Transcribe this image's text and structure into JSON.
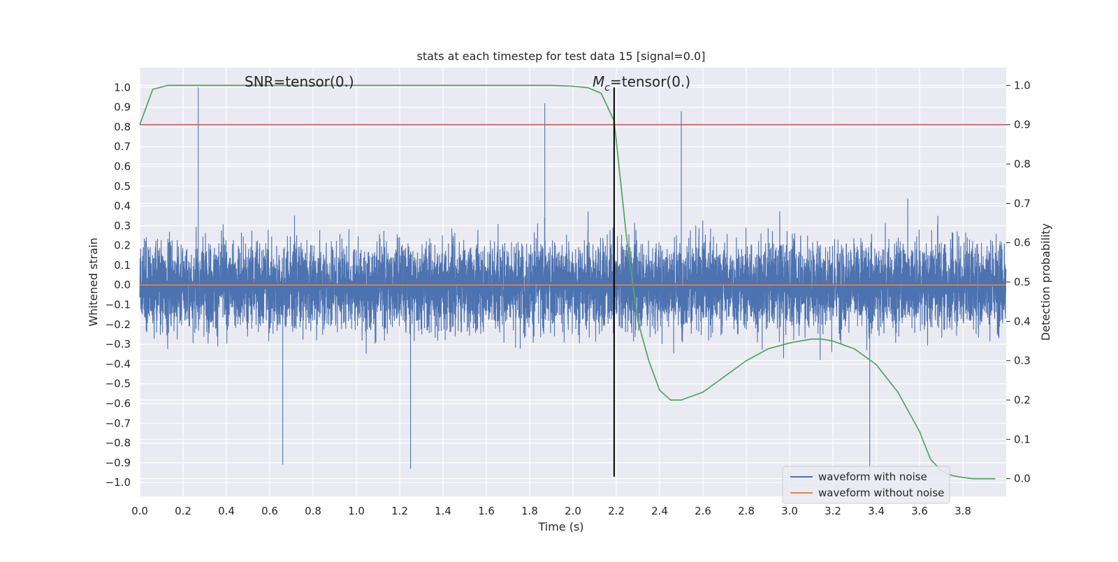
{
  "chart_data": {
    "type": "line",
    "title": "stats at each timestep for test data 15 [signal=0.0]",
    "xlabel": "Time (s)",
    "ylabel": "Whitened strain",
    "y2label": "Detection probability",
    "xlim": [
      0.0,
      4.0
    ],
    "ylim": [
      -1.07,
      1.1
    ],
    "y2lim": [
      -0.045,
      1.045
    ],
    "grid": true,
    "legend_position": "lower-right",
    "xticks": [
      "0.0",
      "0.2",
      "0.4",
      "0.6",
      "0.8",
      "1.0",
      "1.2",
      "1.4",
      "1.6",
      "1.8",
      "2.0",
      "2.2",
      "2.4",
      "2.6",
      "2.8",
      "3.0",
      "3.2",
      "3.4",
      "3.6",
      "3.8"
    ],
    "yticks": [
      "1.0",
      "0.9",
      "0.8",
      "0.7",
      "0.6",
      "0.5",
      "0.4",
      "0.3",
      "0.2",
      "0.1",
      "0.0",
      "−0.1",
      "−0.2",
      "−0.3",
      "−0.4",
      "−0.5",
      "−0.6",
      "−0.7",
      "−0.8",
      "−0.9",
      "−1.0"
    ],
    "y2ticks": [
      "1.0",
      "0.9",
      "0.8",
      "0.7",
      "0.6",
      "0.5",
      "0.4",
      "0.3",
      "0.2",
      "0.1",
      "0.0"
    ],
    "annotations": {
      "snr_text": "SNR=tensor(0.)",
      "mc_symbol": "M",
      "mc_subscript": "c",
      "mc_text": "=tensor(0.)"
    },
    "series": [
      {
        "name": "waveform with noise",
        "axis": "left",
        "color": "#4c72b0",
        "kind": "noise",
        "sample_rate": 2048,
        "amplitude_envelope": 0.55,
        "notable_peaks": [
          [
            0.27,
            1.0
          ],
          [
            1.87,
            0.92
          ],
          [
            2.5,
            0.88
          ],
          [
            3.37,
            -0.97
          ],
          [
            1.25,
            -0.93
          ],
          [
            0.66,
            -0.91
          ]
        ]
      },
      {
        "name": "waveform without noise",
        "axis": "left",
        "color": "#dd8452",
        "x": [
          0.0,
          4.0
        ],
        "y": [
          0.0,
          0.0
        ]
      },
      {
        "axis": "right",
        "color": "#55a868",
        "x": [
          0.0,
          0.06,
          0.13,
          0.2,
          0.5,
          1.0,
          1.5,
          1.9,
          2.0,
          2.07,
          2.13,
          2.19,
          2.25,
          2.3,
          2.35,
          2.4,
          2.45,
          2.5,
          2.6,
          2.7,
          2.8,
          2.9,
          3.0,
          3.1,
          3.15,
          3.2,
          3.3,
          3.4,
          3.5,
          3.6,
          3.65,
          3.7,
          3.75,
          3.8,
          3.85,
          3.9,
          3.95
        ],
        "y": [
          0.9,
          0.99,
          1.0,
          1.0,
          1.0,
          1.0,
          1.0,
          1.0,
          0.998,
          0.994,
          0.98,
          0.91,
          0.6,
          0.4,
          0.3,
          0.225,
          0.2,
          0.2,
          0.22,
          0.26,
          0.3,
          0.33,
          0.345,
          0.355,
          0.355,
          0.35,
          0.33,
          0.29,
          0.22,
          0.12,
          0.05,
          0.02,
          0.008,
          0.003,
          0.0,
          0.0,
          0.0
        ]
      },
      {
        "axis": "right",
        "color": "#c44e52",
        "kind": "threshold",
        "x": [
          0.0,
          4.0
        ],
        "y": [
          0.9,
          0.9
        ]
      },
      {
        "axis": "left",
        "color": "#000000",
        "kind": "vertical-marker",
        "x": [
          2.19,
          2.19
        ],
        "y": [
          -0.97,
          1.0
        ]
      }
    ]
  }
}
